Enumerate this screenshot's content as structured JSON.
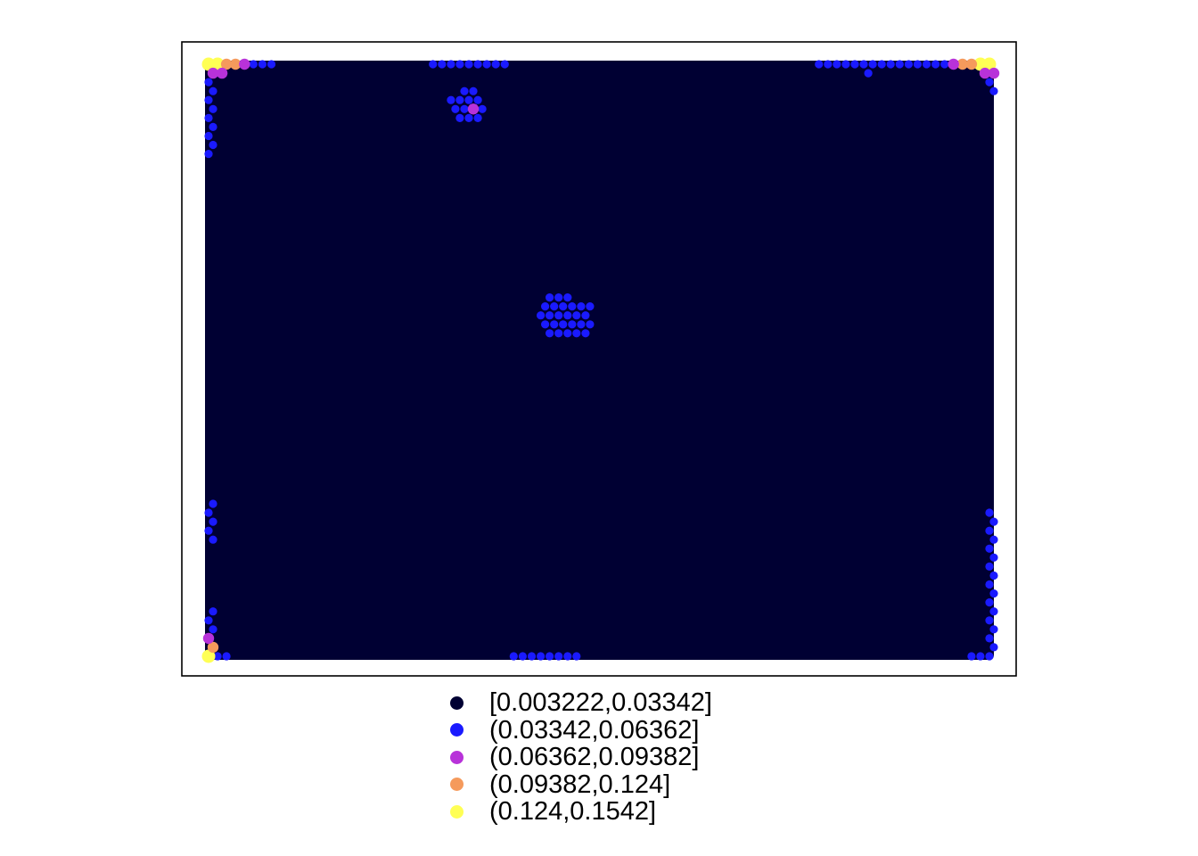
{
  "chart_data": {
    "type": "heatmap",
    "title": "",
    "xlabel": "",
    "ylabel": "",
    "grid": false,
    "legend_position": "bottom",
    "background_class": "[0.003222,0.03342]",
    "classes": [
      {
        "label": "[0.003222,0.03342]",
        "color": "#000033"
      },
      {
        "label": "(0.03342,0.06362]",
        "color": "#1a1aff"
      },
      {
        "label": "(0.06362,0.09382]",
        "color": "#b832d9"
      },
      {
        "label": "(0.09382,0.124]",
        "color": "#f59a5c"
      },
      {
        "label": "(0.124,0.1542]",
        "color": "#ffff55"
      }
    ],
    "highlighted_cells_note": "grid col/row indices of cells not in the lowest class",
    "highlighted_cells": [
      {
        "class": "(0.124,0.1542]",
        "cells": [
          [
            0,
            0
          ],
          [
            1,
            0
          ],
          [
            0,
            66
          ],
          [
            87,
            0
          ],
          [
            86,
            0
          ]
        ]
      },
      {
        "class": "(0.09382,0.124]",
        "cells": [
          [
            2,
            0
          ],
          [
            3,
            0
          ],
          [
            85,
            0
          ],
          [
            84,
            0
          ],
          [
            0,
            65
          ]
        ]
      },
      {
        "class": "(0.06362,0.09382]",
        "cells": [
          [
            4,
            0
          ],
          [
            1,
            1
          ],
          [
            0,
            1
          ],
          [
            83,
            0
          ],
          [
            87,
            1
          ],
          [
            86,
            1
          ],
          [
            0,
            64
          ],
          [
            29,
            5
          ]
        ]
      },
      {
        "class": "(0.03342,0.06362]",
        "cells": "edge segments near corners, top edge around columns 25-33 and 68-83, bottom edge around columns 34-41, and clusters near (29,5) and (40,28)"
      }
    ]
  },
  "legend": {
    "items": [
      {
        "label": "[0.003222,0.03342]",
        "color": "#000033"
      },
      {
        "label": "(0.03342,0.06362]",
        "color": "#1a1aff"
      },
      {
        "label": "(0.06362,0.09382]",
        "color": "#b832d9"
      },
      {
        "label": "(0.09382,0.124]",
        "color": "#f59a5c"
      },
      {
        "label": "(0.124,0.1542]",
        "color": "#ffff55"
      }
    ]
  }
}
